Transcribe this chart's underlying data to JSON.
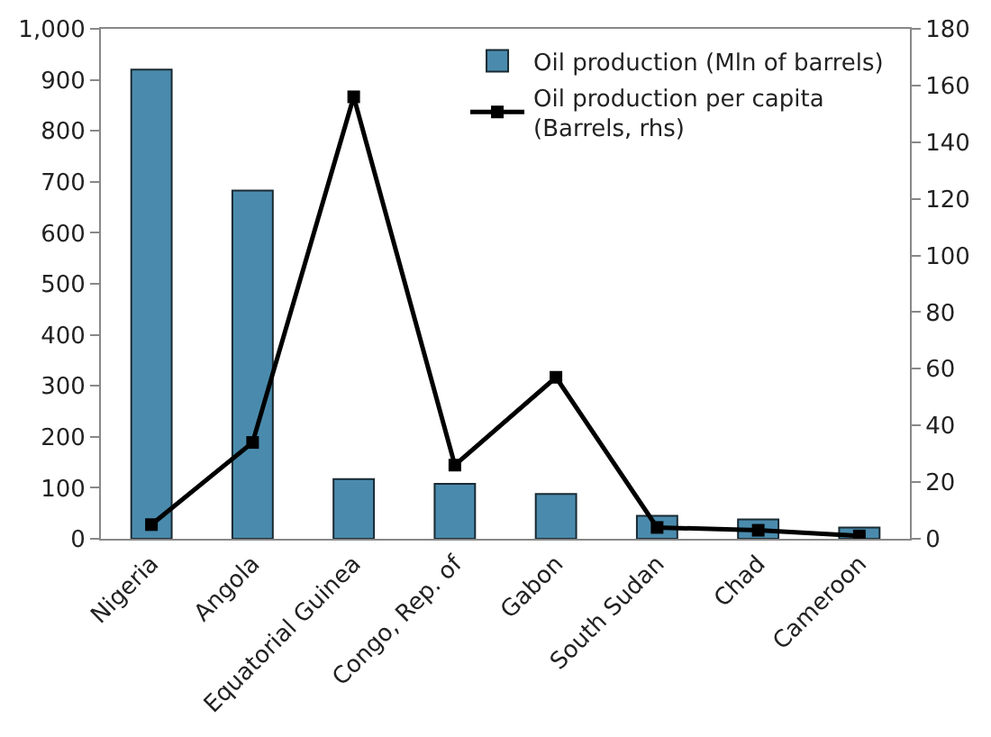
{
  "chart_data": {
    "type": "bar",
    "categories": [
      "Nigeria",
      "Angola",
      "Equatorial Guinea",
      "Congo, Rep. of",
      "Gabon",
      "South Sudan",
      "Chad",
      "Cameroon"
    ],
    "series": [
      {
        "name": "Oil production (Mln of barrels)",
        "color": "#4a8bad",
        "values": [
          920,
          683,
          117,
          108,
          88,
          45,
          38,
          22
        ]
      },
      {
        "name": "Oil production per capita (Barrels, rhs)",
        "color": "#000000",
        "type": "line",
        "axis": "y2",
        "marker": "square",
        "values": [
          5,
          34,
          156,
          26,
          57,
          4,
          3,
          1
        ]
      }
    ],
    "ylim": [
      0,
      1000
    ],
    "yticks": [
      0,
      100,
      200,
      300,
      400,
      500,
      600,
      700,
      800,
      900,
      {
        "value": 1000,
        "label": "1,000"
      }
    ],
    "y2lim": [
      0,
      180
    ],
    "y2ticks": [
      0,
      20,
      40,
      60,
      80,
      100,
      120,
      140,
      160,
      180
    ],
    "legend": "top right"
  }
}
